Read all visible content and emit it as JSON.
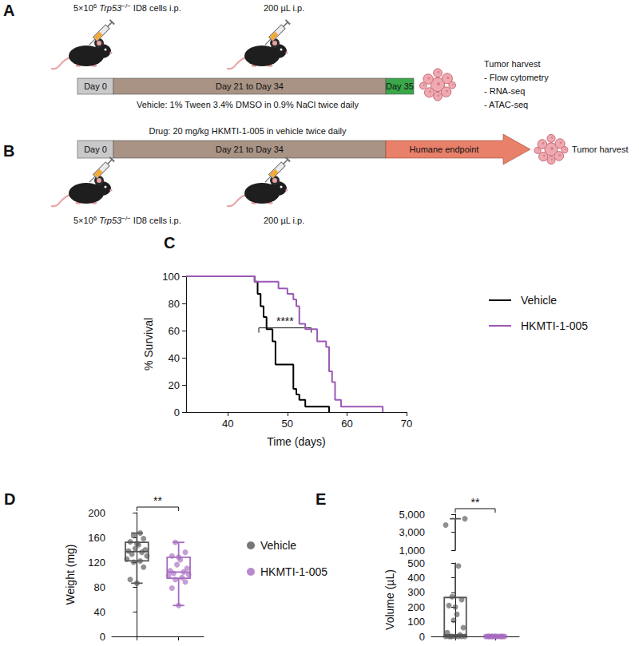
{
  "panels": {
    "A": {
      "panel": "A",
      "injection": {
        "base": "5×10",
        "exp": "6",
        "gene": "Trp53",
        "genotype": "−/−",
        "rest": "ID8 cells i.p."
      },
      "treatment": "200 µL i.p.",
      "timeline": [
        "Day 0",
        "Day 21 to Day 34",
        "Day 35"
      ],
      "harvest": {
        "title": "Tumor harvest",
        "items": [
          "- Flow cytometry",
          "- RNA-seq",
          "- ATAC-seq"
        ]
      },
      "vehicle": "Vehicle: 1% Tween 3.4% DMSO in 0.9% NaCl twice daily",
      "drug": "Drug: 20 mg/kg HKMTI-1-005 in vehicle twice daily"
    },
    "B": {
      "panel": "B",
      "injection": {
        "base": "5×10",
        "exp": "6",
        "gene": "Trp53",
        "genotype": "−/−",
        "rest": "ID8 cells i.p."
      },
      "treatment": "200 µL i.p.",
      "timeline": [
        "Day 0",
        "Day 21 to Day 34",
        "Humane endpoint"
      ],
      "harvest": {
        "title": "Tumor harvest"
      }
    }
  },
  "chart_data": [
    {
      "panel": "C",
      "type": "step",
      "xlabel": "Time (days)",
      "ylabel": "% Survival",
      "xlim": [
        33,
        70
      ],
      "xticks": [
        40,
        50,
        60,
        70
      ],
      "ylim": [
        0,
        100
      ],
      "yticks": [
        0,
        20,
        40,
        60,
        80,
        100
      ],
      "grid": false,
      "series": [
        {
          "name": "Vehicle",
          "color": "#000000",
          "x": [
            33,
            44.5,
            45,
            45.5,
            46,
            46.5,
            47.5,
            48,
            51,
            51.5,
            52,
            53,
            57
          ],
          "values": [
            100,
            96,
            87,
            78,
            70,
            61,
            52,
            35,
            17,
            13,
            9,
            4,
            0
          ]
        },
        {
          "name": "HKMTI-1-005",
          "color": "#9b59b6",
          "x": [
            33,
            44.5,
            48.5,
            50,
            51,
            51.5,
            52,
            53,
            55,
            56.5,
            57,
            57.5,
            58,
            59,
            66
          ],
          "values": [
            100,
            96,
            91,
            87,
            83,
            78,
            65,
            61,
            52,
            48,
            30,
            22,
            9,
            4,
            0
          ]
        }
      ],
      "annotations": [
        {
          "text": "****",
          "x": [
            45.2,
            54
          ],
          "y": 62
        }
      ]
    },
    {
      "panel": "D",
      "type": "box",
      "ylabel": "Weight (mg)",
      "ylim": [
        0,
        200
      ],
      "yticks": [
        0,
        40,
        80,
        120,
        160,
        200
      ],
      "grid": false,
      "tick_labels": "y",
      "series": [
        {
          "name": "Vehicle",
          "color": "#555555",
          "box": [
            86,
            122,
            137,
            152,
            167
          ],
          "values": [
            86,
            92,
            112,
            120,
            122,
            125,
            130,
            133,
            136,
            138,
            140,
            142,
            148,
            150,
            153,
            158,
            163,
            167
          ]
        },
        {
          "name": "HKMTI-1-005",
          "color": "#a66bbf",
          "box": [
            50,
            94,
            104,
            128,
            152
          ],
          "values": [
            50,
            78,
            88,
            92,
            95,
            98,
            100,
            102,
            104,
            106,
            110,
            116,
            124,
            128,
            130,
            136,
            152
          ]
        }
      ],
      "annotations": [
        {
          "text": "**",
          "groups": [
            "Vehicle",
            "HKMTI-1-005"
          ]
        }
      ]
    },
    {
      "panel": "E",
      "type": "box",
      "ylabel": "Volume (µL)",
      "grid": false,
      "tick_labels": "y",
      "y_segments": [
        {
          "ylim": [
            0,
            500
          ],
          "yticks": [
            0,
            100,
            200,
            300,
            400,
            500
          ]
        },
        {
          "ylim": [
            1000,
            5000
          ],
          "yticks": [
            {
              "value": 1000,
              "label": "1,000"
            },
            {
              "value": 3000,
              "label": "3,000"
            },
            {
              "value": 5000,
              "label": "5,000"
            }
          ]
        }
      ],
      "series": [
        {
          "name": "Vehicle",
          "color": "#555555",
          "box": [
            0,
            0,
            10,
            265,
            4500
          ],
          "values": [
            0,
            0,
            0,
            0,
            0,
            0,
            0,
            0,
            10,
            25,
            60,
            110,
            150,
            200,
            210,
            250,
            270,
            480,
            3800,
            4500
          ]
        },
        {
          "name": "HKMTI-1-005",
          "color": "#a66bbf",
          "box": [
            0,
            0,
            0,
            0,
            0
          ],
          "values": [
            0,
            0,
            0,
            0,
            0,
            0,
            0,
            0,
            0,
            0,
            0,
            0,
            0,
            0,
            0,
            0,
            0
          ]
        }
      ],
      "annotations": [
        {
          "text": "**",
          "groups": [
            "Vehicle",
            "HKMTI-1-005"
          ]
        }
      ]
    }
  ]
}
